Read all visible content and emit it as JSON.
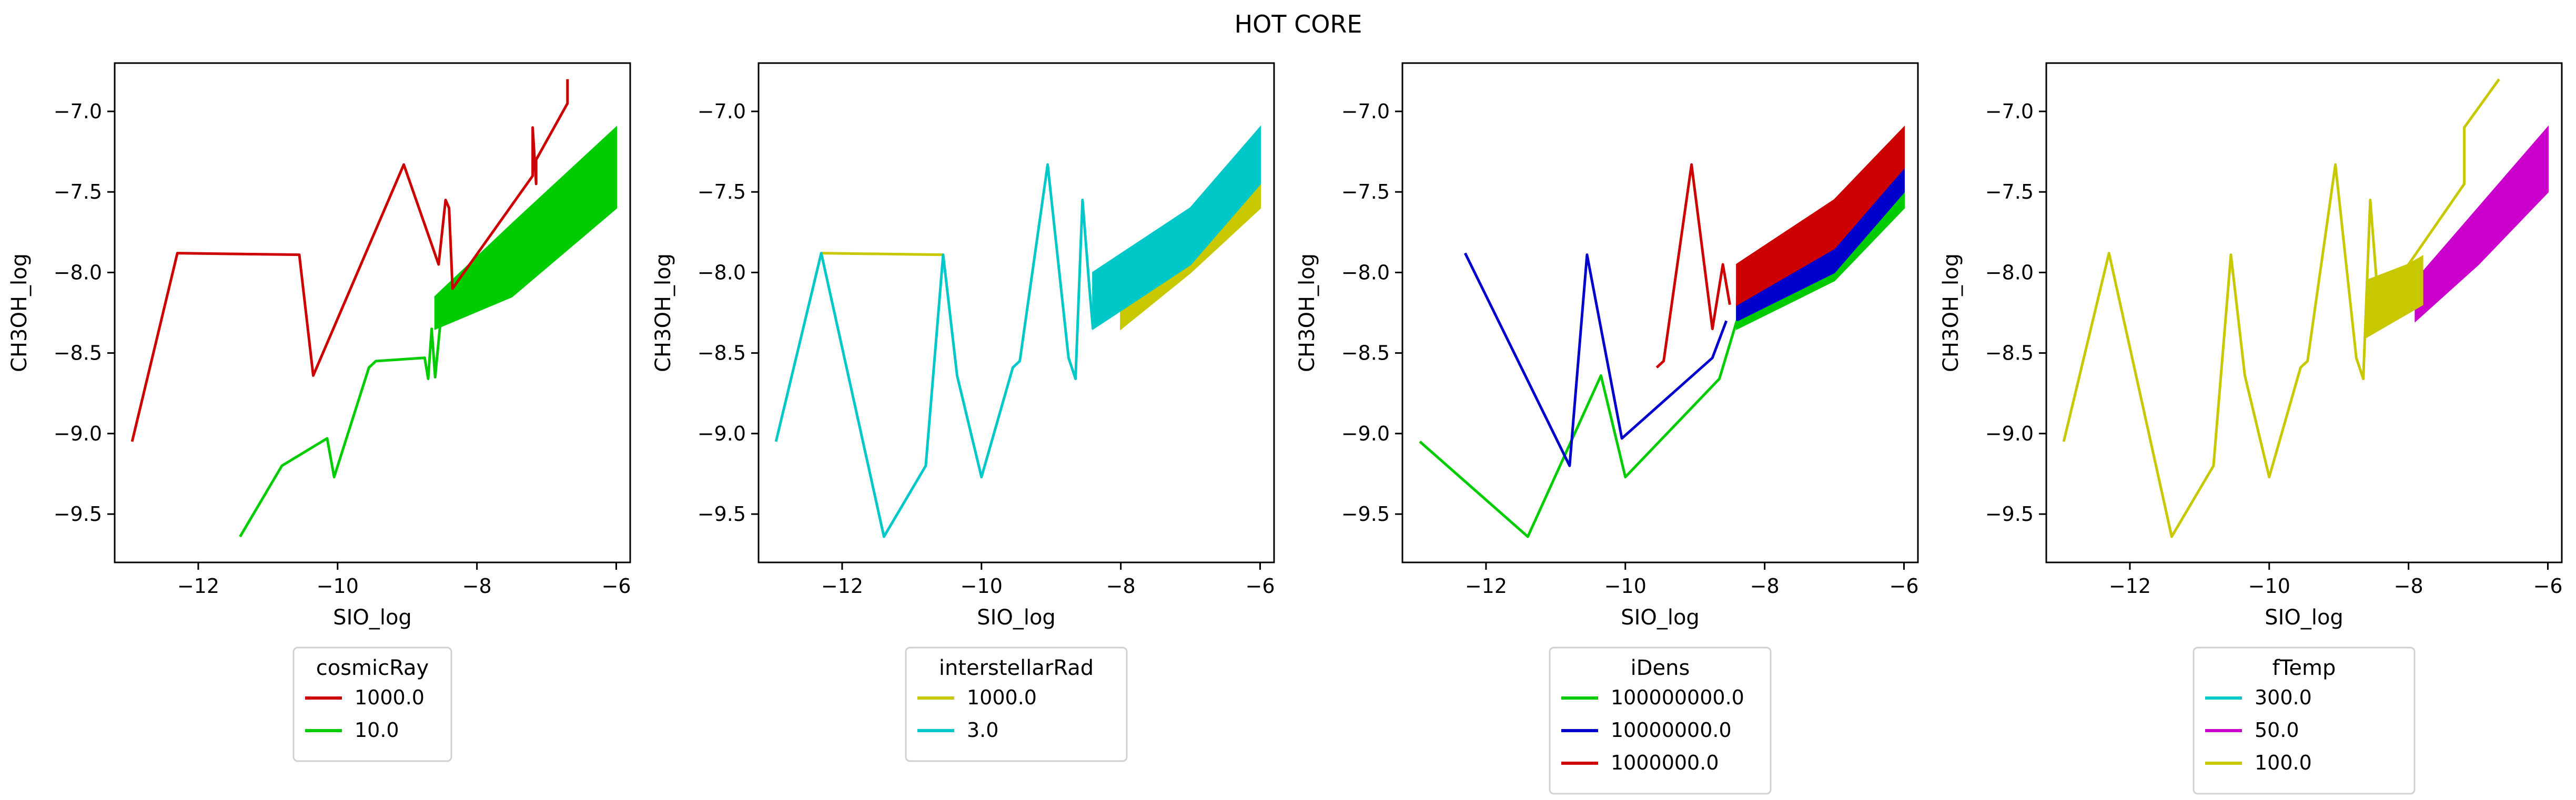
{
  "title": "HOT CORE",
  "colors": {
    "red": "#cc0000",
    "green": "#00cc00",
    "blue": "#0000cc",
    "cyan": "#00c8c8",
    "olive": "#c8c800",
    "magenta": "#cc00cc"
  },
  "chart_data": [
    {
      "type": "line",
      "xlabel": "SIO_log",
      "ylabel": "CH3OH_log",
      "xlim": [
        -13.2,
        -5.8
      ],
      "ylim": [
        -9.8,
        -6.7
      ],
      "xticks": [
        -12,
        -10,
        -8,
        -6
      ],
      "yticks": [
        -9.5,
        -9.0,
        -8.5,
        -8.0,
        -7.5,
        -7.0
      ],
      "legend_title": "cosmicRay",
      "series": [
        {
          "name": "1000.0",
          "color": "#cc0000",
          "x": [
            -12.95,
            -12.3,
            -10.55,
            -10.35,
            -9.05,
            -8.55,
            -8.45,
            -8.4,
            -8.35,
            -7.2,
            -7.2,
            -7.15,
            -7.15,
            -6.7,
            -6.7
          ],
          "y": [
            -9.05,
            -7.88,
            -7.89,
            -8.64,
            -7.33,
            -7.95,
            -7.55,
            -7.6,
            -8.1,
            -7.4,
            -7.1,
            -7.45,
            -7.3,
            -6.95,
            -6.8
          ]
        },
        {
          "name": "10.0",
          "color": "#00cc00",
          "x": [
            -11.4,
            -10.8,
            -10.15,
            -10.05,
            -9.55,
            -9.45,
            -8.75,
            -8.7,
            -8.65,
            -8.6,
            -8.5
          ],
          "y": [
            -9.64,
            -9.2,
            -9.03,
            -9.27,
            -8.59,
            -8.55,
            -8.53,
            -8.66,
            -8.35,
            -8.65,
            -8.2
          ],
          "band": {
            "x": [
              -8.6,
              -7.5,
              -6.0
            ],
            "low": [
              -8.35,
              -8.15,
              -7.6
            ],
            "high": [
              -8.15,
              -7.7,
              -7.1
            ]
          }
        }
      ]
    },
    {
      "type": "line",
      "xlabel": "SIO_log",
      "ylabel": "CH3OH_log",
      "xlim": [
        -13.2,
        -5.8
      ],
      "ylim": [
        -9.8,
        -6.7
      ],
      "xticks": [
        -12,
        -10,
        -8,
        -6
      ],
      "yticks": [
        -9.5,
        -9.0,
        -8.5,
        -8.0,
        -7.5,
        -7.0
      ],
      "legend_title": "interstellarRad",
      "series": [
        {
          "name": "1000.0",
          "color": "#c8c800",
          "x": [
            -12.3,
            -10.55
          ],
          "y": [
            -7.88,
            -7.89
          ],
          "band": {
            "x": [
              -8.0,
              -7.0,
              -6.0
            ],
            "low": [
              -8.35,
              -8.0,
              -7.6
            ],
            "high": [
              -8.15,
              -7.7,
              -7.3
            ]
          }
        },
        {
          "name": "3.0",
          "color": "#00c8c8",
          "x": [
            -12.95,
            -12.3,
            -11.4,
            -10.8,
            -10.55,
            -10.35,
            -10.0,
            -9.55,
            -9.45,
            -9.05,
            -8.75,
            -8.65,
            -8.55,
            -8.45,
            -8.4
          ],
          "y": [
            -9.05,
            -7.88,
            -9.64,
            -9.2,
            -7.89,
            -8.64,
            -9.27,
            -8.59,
            -8.55,
            -7.33,
            -8.53,
            -8.66,
            -7.55,
            -8.1,
            -8.35
          ],
          "band": {
            "x": [
              -8.4,
              -7.0,
              -6.0
            ],
            "low": [
              -8.35,
              -7.95,
              -7.45
            ],
            "high": [
              -8.0,
              -7.6,
              -7.1
            ]
          }
        }
      ]
    },
    {
      "type": "line",
      "xlabel": "SIO_log",
      "ylabel": "CH3OH_log",
      "xlim": [
        -13.2,
        -5.8
      ],
      "ylim": [
        -9.8,
        -6.7
      ],
      "xticks": [
        -12,
        -10,
        -8,
        -6
      ],
      "yticks": [
        -9.5,
        -9.0,
        -8.5,
        -8.0,
        -7.5,
        -7.0
      ],
      "legend_title": "iDens",
      "series": [
        {
          "name": "100000000.0",
          "color": "#00cc00",
          "x": [
            -12.95,
            -11.4,
            -10.35,
            -10.0,
            -8.65,
            -8.4
          ],
          "y": [
            -9.05,
            -9.64,
            -8.64,
            -9.27,
            -8.66,
            -8.3
          ],
          "band": {
            "x": [
              -8.4,
              -7.0,
              -6.0
            ],
            "low": [
              -8.35,
              -8.05,
              -7.6
            ],
            "high": [
              -8.2,
              -7.9,
              -7.45
            ]
          }
        },
        {
          "name": "10000000.0",
          "color": "#0000cc",
          "x": [
            -12.3,
            -10.8,
            -10.55,
            -10.05,
            -8.75,
            -8.55
          ],
          "y": [
            -7.88,
            -9.2,
            -7.89,
            -9.03,
            -8.53,
            -8.3
          ],
          "band": {
            "x": [
              -8.4,
              -7.0,
              -6.0
            ],
            "low": [
              -8.3,
              -8.0,
              -7.5
            ],
            "high": [
              -8.15,
              -7.8,
              -7.3
            ]
          }
        },
        {
          "name": "1000000.0",
          "color": "#cc0000",
          "x": [
            -9.55,
            -9.45,
            -9.05,
            -8.75,
            -8.6,
            -8.5
          ],
          "y": [
            -8.59,
            -8.55,
            -7.33,
            -8.35,
            -7.95,
            -8.2
          ],
          "band": {
            "x": [
              -8.4,
              -7.0,
              -6.0
            ],
            "low": [
              -8.2,
              -7.85,
              -7.35
            ],
            "high": [
              -7.95,
              -7.55,
              -7.1
            ]
          }
        }
      ]
    },
    {
      "type": "line",
      "xlabel": "SIO_log",
      "ylabel": "CH3OH_log",
      "xlim": [
        -13.2,
        -5.8
      ],
      "ylim": [
        -9.8,
        -6.7
      ],
      "xticks": [
        -12,
        -10,
        -8,
        -6
      ],
      "yticks": [
        -9.5,
        -9.0,
        -8.5,
        -8.0,
        -7.5,
        -7.0
      ],
      "legend_title": "fTemp",
      "series": [
        {
          "name": "300.0",
          "color": "#00c8c8",
          "x": [],
          "y": []
        },
        {
          "name": "50.0",
          "color": "#cc00cc",
          "x": [],
          "y": [],
          "band": {
            "x": [
              -7.9,
              -7.0,
              -6.0
            ],
            "low": [
              -8.3,
              -7.95,
              -7.5
            ],
            "high": [
              -8.05,
              -7.6,
              -7.1
            ]
          }
        },
        {
          "name": "100.0",
          "color": "#c8c800",
          "x": [
            -12.95,
            -12.3,
            -11.4,
            -10.8,
            -10.55,
            -10.35,
            -10.0,
            -9.55,
            -9.45,
            -9.05,
            -8.75,
            -8.65,
            -8.55,
            -8.45,
            -8.4,
            -7.2,
            -7.2,
            -6.7
          ],
          "y": [
            -9.05,
            -7.88,
            -9.64,
            -9.2,
            -7.89,
            -8.64,
            -9.27,
            -8.59,
            -8.55,
            -7.33,
            -8.53,
            -8.66,
            -7.55,
            -8.1,
            -8.2,
            -7.45,
            -7.1,
            -6.8
          ],
          "band": {
            "x": [
              -8.6,
              -8.0,
              -7.8
            ],
            "low": [
              -8.4,
              -8.25,
              -8.2
            ],
            "high": [
              -8.05,
              -7.95,
              -7.9
            ]
          }
        }
      ]
    }
  ]
}
